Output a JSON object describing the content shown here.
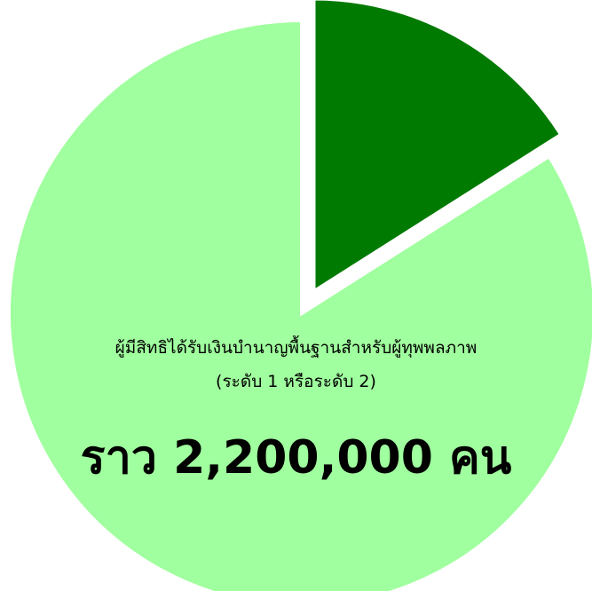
{
  "chart_data": {
    "type": "pie",
    "slices": [
      {
        "value": 84,
        "color": "#a0ff9e",
        "label_lines": [
          "ผู้มีสิทธิได้รับเงินบำนาญพื้นฐานสำหรับผู้ทุพพลภาพ",
          "(ระดับ 1 หรือระดับ 2)"
        ],
        "value_label": "ราว 2,200,000 คน"
      },
      {
        "value": 16,
        "color": "#007a00",
        "exploded": true
      }
    ]
  }
}
